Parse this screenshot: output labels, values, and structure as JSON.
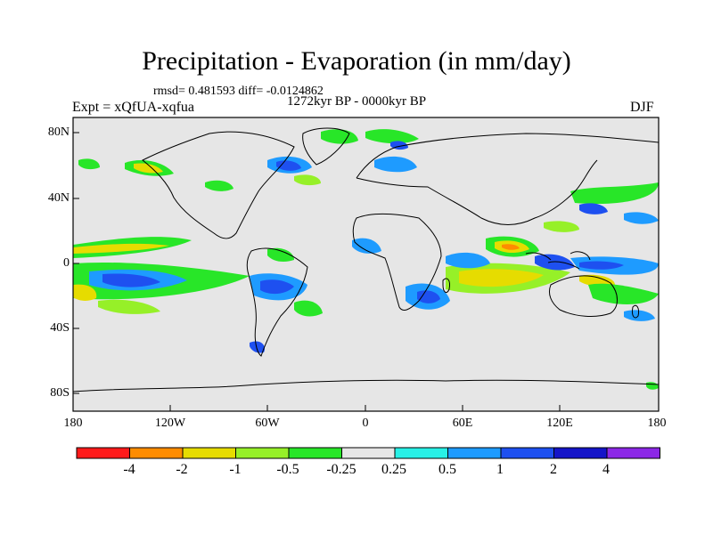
{
  "title": "Precipitation - Evaporation (in mm/day)",
  "stats": "rmsd= 0.481593 diff= -0.0124862",
  "period": "1272kyr BP - 0000kyr BP",
  "experiment": "Expt = xQfUA-xqfua",
  "season": "DJF",
  "map": {
    "lat_ticks": [
      "80N",
      "40N",
      "0",
      "40S",
      "80S"
    ],
    "lon_ticks": [
      "180",
      "120W",
      "60W",
      "0",
      "60E",
      "120E",
      "180"
    ],
    "background_color": "#e6e6e6"
  },
  "colorbar": {
    "labels": [
      "-4",
      "-2",
      "-1",
      "-0.5",
      "-0.25",
      "0.25",
      "0.5",
      "1",
      "2",
      "4"
    ],
    "colors": [
      "#ff1a1a",
      "#ff8c00",
      "#e6dc00",
      "#96f028",
      "#28e628",
      "#e6e6e6",
      "#28f0e6",
      "#1e9bff",
      "#1e50f0",
      "#1414c8",
      "#8c28e6"
    ]
  }
}
